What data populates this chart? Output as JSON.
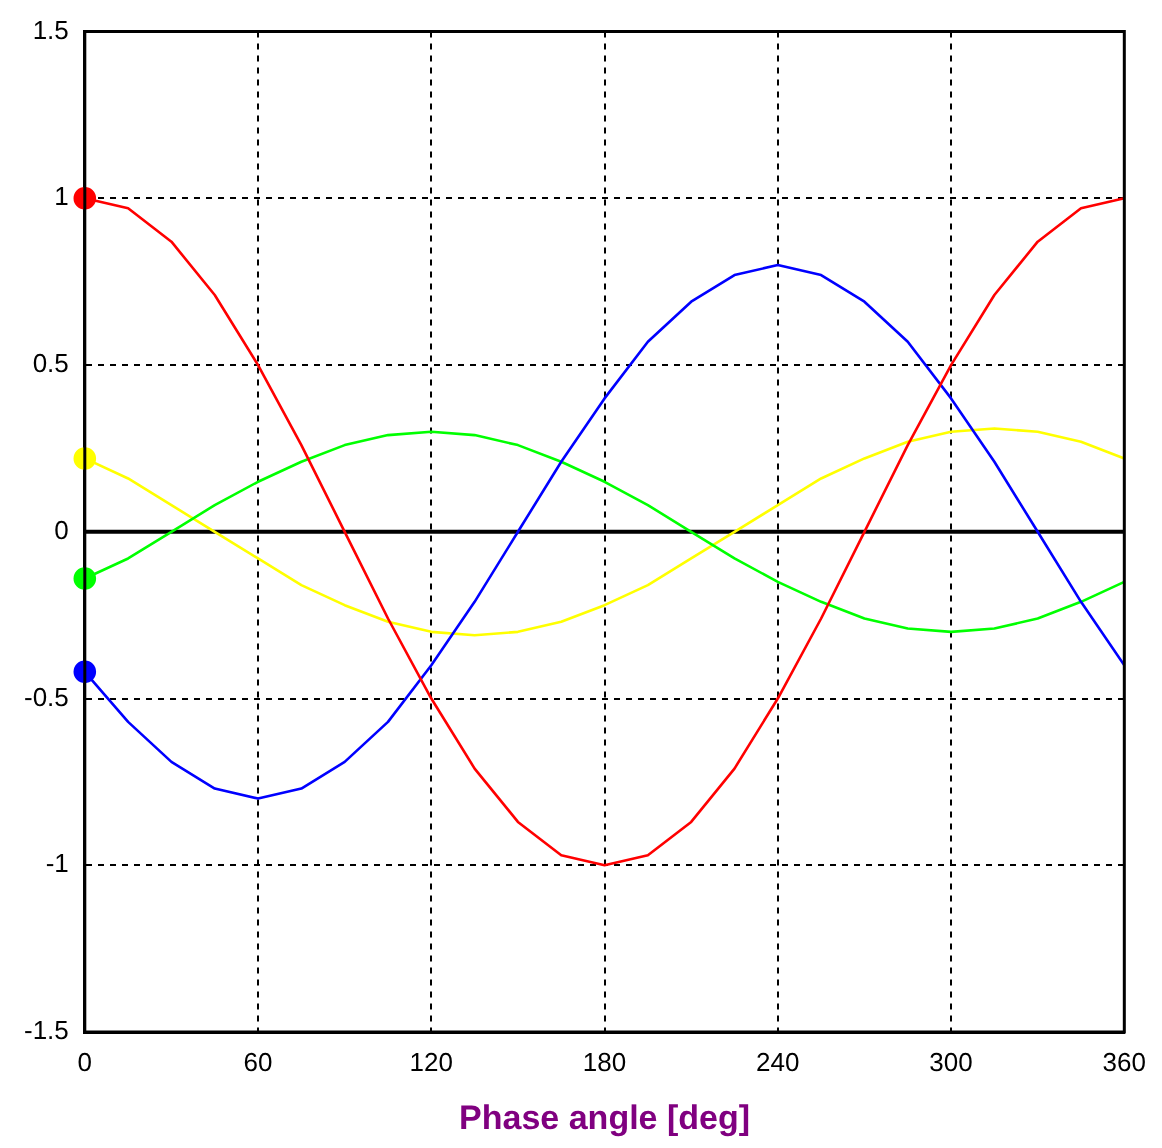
{
  "chart_data": {
    "type": "line",
    "xlabel": "Phase angle [deg]",
    "x": [
      0,
      15,
      30,
      45,
      60,
      75,
      90,
      105,
      120,
      135,
      150,
      165,
      180,
      195,
      210,
      225,
      240,
      255,
      270,
      285,
      300,
      315,
      330,
      345,
      360
    ],
    "series": [
      {
        "color": "#ff0000",
        "values": [
          1,
          0.97,
          0.87,
          0.71,
          0.5,
          0.26,
          0,
          -0.26,
          -0.5,
          -0.71,
          -0.87,
          -0.97,
          -1,
          -0.97,
          -0.87,
          -0.71,
          -0.5,
          -0.26,
          0,
          0.26,
          0.5,
          0.71,
          0.87,
          0.97,
          1
        ]
      },
      {
        "color": "#0000ff",
        "values": [
          -0.42,
          -0.57,
          -0.69,
          -0.77,
          -0.8,
          -0.77,
          -0.69,
          -0.57,
          -0.4,
          -0.21,
          0,
          0.21,
          0.4,
          0.57,
          0.69,
          0.77,
          0.8,
          0.77,
          0.69,
          0.57,
          0.4,
          0.21,
          0,
          -0.21,
          -0.4
        ]
      },
      {
        "color": "#00ff00",
        "values": [
          -0.14,
          -0.08,
          0,
          0.08,
          0.15,
          0.21,
          0.26,
          0.29,
          0.3,
          0.29,
          0.26,
          0.21,
          0.15,
          0.08,
          0,
          -0.08,
          -0.15,
          -0.21,
          -0.26,
          -0.29,
          -0.3,
          -0.29,
          -0.26,
          -0.21,
          -0.15
        ]
      },
      {
        "color": "#ffff00",
        "values": [
          0.22,
          0.16,
          0.08,
          0,
          -0.08,
          -0.16,
          -0.22,
          -0.27,
          -0.3,
          -0.31,
          -0.3,
          -0.27,
          -0.22,
          -0.16,
          -0.08,
          0,
          0.08,
          0.16,
          0.22,
          0.27,
          0.3,
          0.31,
          0.3,
          0.27,
          0.22
        ]
      },
      {
        "type": "scatter",
        "marker": "circle",
        "color": "#ff0000",
        "values": [
          1,
          null,
          null,
          null,
          null,
          null,
          null,
          null,
          null,
          null,
          null,
          null,
          null,
          null,
          null,
          null,
          null,
          null,
          null,
          null,
          null,
          null,
          null,
          null,
          null
        ]
      },
      {
        "type": "scatter",
        "marker": "circle",
        "color": "#0000ff",
        "values": [
          -0.42,
          null,
          null,
          null,
          null,
          null,
          null,
          null,
          null,
          null,
          null,
          null,
          null,
          null,
          null,
          null,
          null,
          null,
          null,
          null,
          null,
          null,
          null,
          null,
          null
        ]
      },
      {
        "type": "scatter",
        "marker": "circle",
        "color": "#00ff00",
        "values": [
          -0.14,
          null,
          null,
          null,
          null,
          null,
          null,
          null,
          null,
          null,
          null,
          null,
          null,
          null,
          null,
          null,
          null,
          null,
          null,
          null,
          null,
          null,
          null,
          null,
          null
        ]
      },
      {
        "type": "scatter",
        "marker": "circle",
        "color": "#ffff00",
        "values": [
          0.22,
          null,
          null,
          null,
          null,
          null,
          null,
          null,
          null,
          null,
          null,
          null,
          null,
          null,
          null,
          null,
          null,
          null,
          null,
          null,
          null,
          null,
          null,
          null,
          null
        ]
      }
    ],
    "xlim": [
      0,
      360
    ],
    "xticks": [
      0,
      60,
      120,
      180,
      240,
      300,
      360
    ],
    "ylim": [
      -1.5,
      1.5
    ],
    "yticks": [
      -1.5,
      -1,
      -0.5,
      0,
      0.5,
      1,
      1.5
    ],
    "ref_lines": [
      {
        "axis": "y",
        "value": 0,
        "color": "#000000",
        "line_style": "solid"
      }
    ],
    "grid": true,
    "legend": false,
    "marker": "none",
    "line_style": "solid"
  }
}
